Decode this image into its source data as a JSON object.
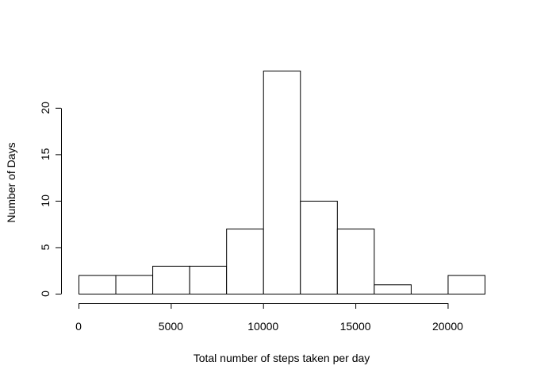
{
  "chart_data": {
    "type": "bar",
    "title": "",
    "xlabel": "Total number of steps taken per day",
    "ylabel": "Number of Days",
    "bins": [
      {
        "start": 0,
        "end": 2000,
        "count": 2
      },
      {
        "start": 2000,
        "end": 4000,
        "count": 2
      },
      {
        "start": 4000,
        "end": 6000,
        "count": 3
      },
      {
        "start": 6000,
        "end": 8000,
        "count": 3
      },
      {
        "start": 8000,
        "end": 10000,
        "count": 7
      },
      {
        "start": 10000,
        "end": 12000,
        "count": 24
      },
      {
        "start": 12000,
        "end": 14000,
        "count": 10
      },
      {
        "start": 14000,
        "end": 16000,
        "count": 7
      },
      {
        "start": 16000,
        "end": 18000,
        "count": 1
      },
      {
        "start": 18000,
        "end": 20000,
        "count": 0
      },
      {
        "start": 20000,
        "end": 22000,
        "count": 2
      }
    ],
    "xlim": [
      0,
      22000
    ],
    "ylim": [
      0,
      24
    ],
    "x_ticks": [
      0,
      5000,
      10000,
      15000,
      20000
    ],
    "y_ticks": [
      0,
      5,
      10,
      15,
      20
    ],
    "grid": false,
    "colors": {
      "bar_fill": "#ffffff",
      "bar_stroke": "#000000",
      "axis": "#000000"
    }
  }
}
